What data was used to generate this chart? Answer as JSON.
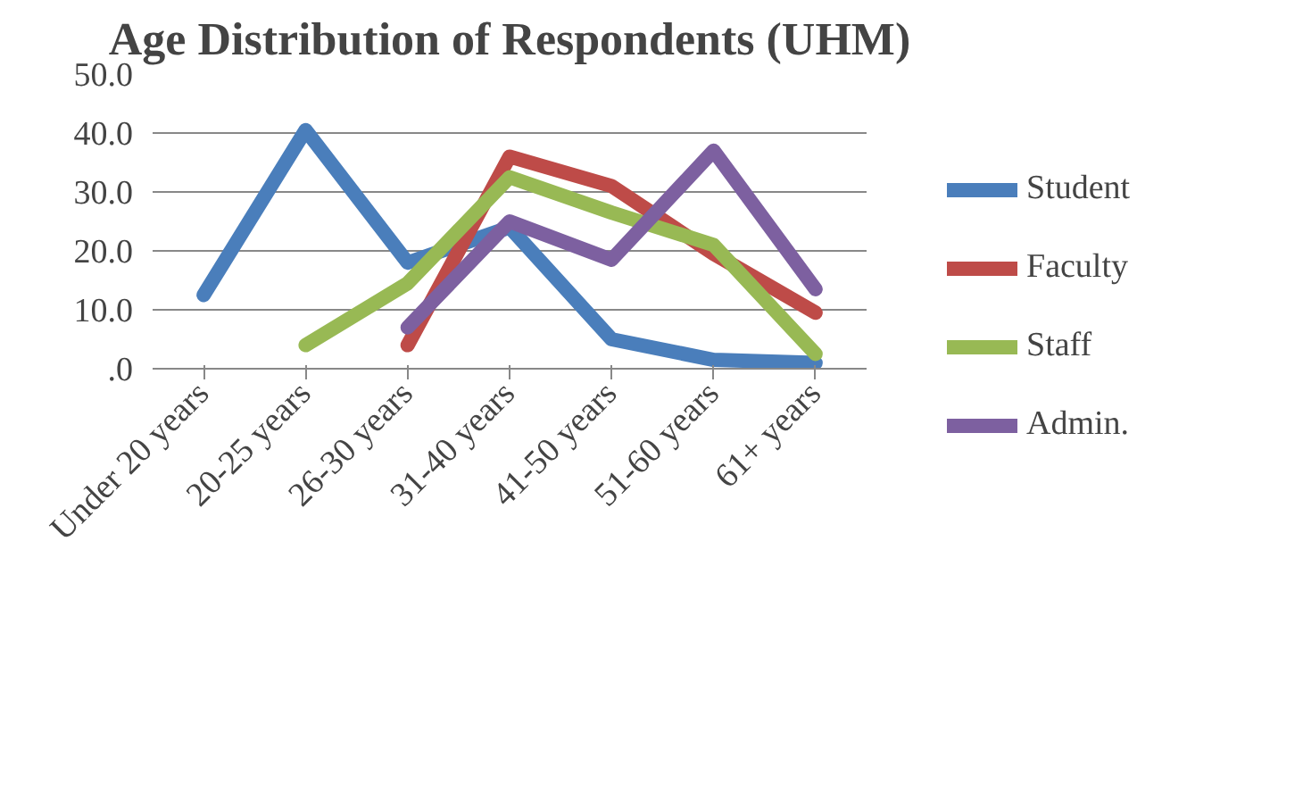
{
  "chart_data": {
    "type": "line",
    "title": "Age Distribution of Respondents (UHM)",
    "categories": [
      "Under 20 years",
      "20-25 years",
      "26-30 years",
      "31-40 years",
      "41-50 years",
      "51-60 years",
      "61+ years"
    ],
    "series": [
      {
        "name": "Student",
        "color": "#4a7ebb",
        "values": [
          12.5,
          40.5,
          18,
          24,
          5,
          1.5,
          1
        ]
      },
      {
        "name": "Faculty",
        "color": "#be4b48",
        "values": [
          null,
          null,
          4,
          36,
          31,
          19.5,
          9.5
        ]
      },
      {
        "name": "Staff",
        "color": "#98b954",
        "values": [
          null,
          4,
          14.5,
          32.5,
          26.5,
          21,
          2.5
        ]
      },
      {
        "name": "Admin.",
        "color": "#7d60a0",
        "values": [
          null,
          null,
          7,
          25,
          18.5,
          37,
          13.5
        ]
      }
    ],
    "ylim": [
      0,
      50
    ],
    "yticks": [
      {
        "value": 0,
        "label": ".0"
      },
      {
        "value": 10,
        "label": "10.0"
      },
      {
        "value": 20,
        "label": "20.0"
      },
      {
        "value": 30,
        "label": "30.0"
      },
      {
        "value": 40,
        "label": "40.0"
      },
      {
        "value": 50,
        "label": "50.0"
      }
    ],
    "grid": "y",
    "legend": "right",
    "marker": "none",
    "line_style": "solid"
  }
}
